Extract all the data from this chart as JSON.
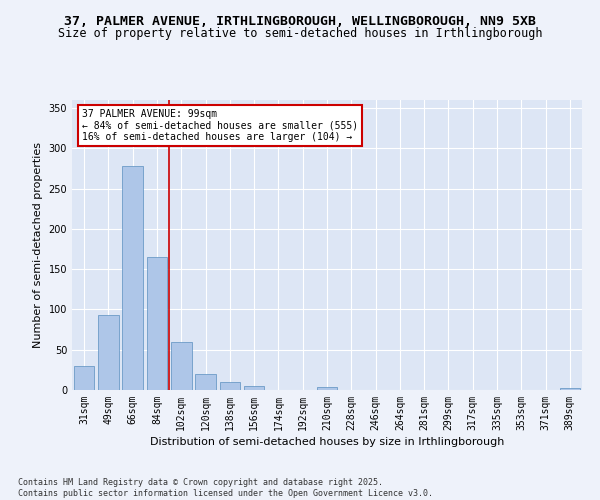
{
  "title_line1": "37, PALMER AVENUE, IRTHLINGBOROUGH, WELLINGBOROUGH, NN9 5XB",
  "title_line2": "Size of property relative to semi-detached houses in Irthlingborough",
  "xlabel": "Distribution of semi-detached houses by size in Irthlingborough",
  "ylabel": "Number of semi-detached properties",
  "categories": [
    "31sqm",
    "49sqm",
    "66sqm",
    "84sqm",
    "102sqm",
    "120sqm",
    "138sqm",
    "156sqm",
    "174sqm",
    "192sqm",
    "210sqm",
    "228sqm",
    "246sqm",
    "264sqm",
    "281sqm",
    "299sqm",
    "317sqm",
    "335sqm",
    "353sqm",
    "371sqm",
    "389sqm"
  ],
  "values": [
    30,
    93,
    278,
    165,
    60,
    20,
    10,
    5,
    0,
    0,
    4,
    0,
    0,
    0,
    0,
    0,
    0,
    0,
    0,
    0,
    3
  ],
  "bar_color": "#aec6e8",
  "bar_edge_color": "#5a8fc0",
  "red_line_x": 3.5,
  "annotation_text": "37 PALMER AVENUE: 99sqm\n← 84% of semi-detached houses are smaller (555)\n16% of semi-detached houses are larger (104) →",
  "annotation_box_color": "#ffffff",
  "annotation_box_edge": "#cc0000",
  "red_line_color": "#cc0000",
  "ylim": [
    0,
    360
  ],
  "yticks": [
    0,
    50,
    100,
    150,
    200,
    250,
    300,
    350
  ],
  "fig_bg_color": "#eef2fa",
  "plot_bg_color": "#dde6f5",
  "footer_text": "Contains HM Land Registry data © Crown copyright and database right 2025.\nContains public sector information licensed under the Open Government Licence v3.0.",
  "title_fontsize": 9.5,
  "subtitle_fontsize": 8.5,
  "tick_fontsize": 7,
  "axis_label_fontsize": 8,
  "footer_fontsize": 6,
  "annot_fontsize": 7
}
